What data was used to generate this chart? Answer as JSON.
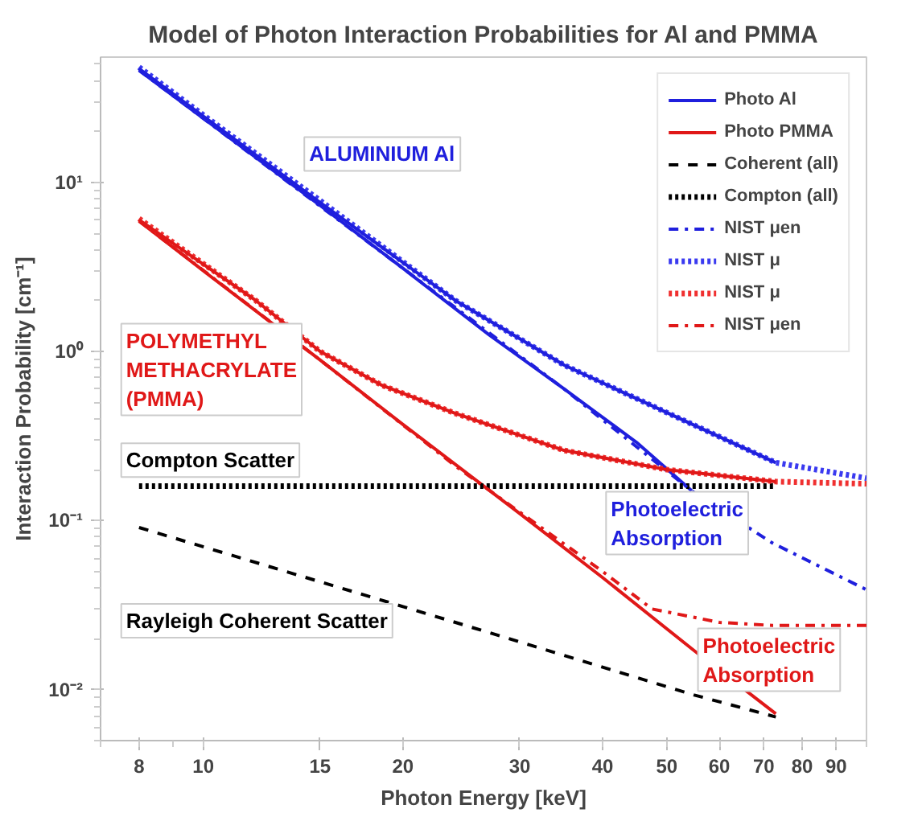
{
  "chart_data": {
    "type": "line",
    "title": "Model of Photon Interaction Probabilities for Al and PMMA",
    "xlabel": "Photon Energy [keV]",
    "ylabel": "Interaction Probability [cm⁻¹]",
    "log": "xy",
    "xlim": [
      7,
      100
    ],
    "ylim": [
      0.005,
      55
    ],
    "xticks": [
      8,
      10,
      15,
      20,
      30,
      40,
      50,
      60,
      70,
      80,
      90
    ],
    "yticks": [
      {
        "value": 0.01,
        "label": "10⁻²"
      },
      {
        "value": 0.1,
        "label": "10⁻¹"
      },
      {
        "value": 1,
        "label": "10⁰"
      },
      {
        "value": 10,
        "label": "10¹"
      }
    ],
    "grid": false,
    "legend": "top right",
    "marker": "none",
    "annotations": [
      "ALUMINIUM Al",
      "POLYMETHYL\nMETHACRYLATE\n(PMMA)",
      "Compton Scatter",
      "Photoelectric\nAbsorption",
      "Rayleigh Coherent Scatter",
      "Photoelectric\nAbsorption"
    ],
    "series": [
      {
        "name": "Photo Al",
        "color": "#1f1fdd",
        "line_style": "solid",
        "x": [
          8,
          10,
          15,
          20,
          27,
          35,
          45,
          54.5
        ],
        "values": [
          46,
          23.9,
          7.3,
          3.1,
          1.25,
          0.6,
          0.29,
          0.15
        ]
      },
      {
        "name": "Photo PMMA",
        "color": "#e01818",
        "line_style": "solid",
        "x": [
          8,
          10,
          15,
          20,
          30,
          40,
          55,
          73
        ],
        "values": [
          5.9,
          3.0,
          0.89,
          0.37,
          0.11,
          0.046,
          0.017,
          0.0072
        ]
      },
      {
        "name": "Coherent (all)",
        "color": "#000000",
        "line_style": "dashed",
        "x": [
          8,
          20,
          24,
          55,
          73
        ],
        "values": [
          0.091,
          0.031,
          0.025,
          0.0093,
          0.0069
        ]
      },
      {
        "name": "Compton (all)",
        "color": "#000000",
        "line_style": "dotted",
        "x": [
          8,
          73
        ],
        "values": [
          0.16,
          0.16
        ]
      },
      {
        "name": "NIST μen",
        "color": "#1f1fdd",
        "line_style": "dashdot",
        "x": [
          8,
          20,
          35,
          54.5,
          72,
          100
        ],
        "values": [
          46,
          3.1,
          0.6,
          0.15,
          0.074,
          0.039
        ]
      },
      {
        "name": "NIST μ",
        "color": "#3a3af0",
        "line_style": "dotted",
        "x": [
          8,
          10,
          15,
          24,
          35,
          50,
          73,
          100
        ],
        "values": [
          48,
          25,
          7.8,
          2.0,
          0.83,
          0.435,
          0.22,
          0.178
        ]
      },
      {
        "name": "NIST μ",
        "color": "#f03030",
        "line_style": "dotted",
        "x": [
          8,
          12,
          15,
          18.6,
          24,
          35,
          50,
          73,
          100
        ],
        "values": [
          6.1,
          2.0,
          1.0,
          0.63,
          0.43,
          0.26,
          0.2,
          0.17,
          0.165
        ]
      },
      {
        "name": "NIST μen",
        "color": "#e01818",
        "line_style": "dashdot",
        "x": [
          8,
          15,
          24,
          40,
          47.5,
          60,
          72,
          100
        ],
        "values": [
          5.9,
          0.89,
          0.21,
          0.05,
          0.03,
          0.025,
          0.024,
          0.024
        ]
      },
      {
        "color": "#1f1fdd",
        "line_style": "solid",
        "x": [
          8,
          15,
          24,
          35,
          50,
          73
        ],
        "values": [
          47,
          7.6,
          2.0,
          0.83,
          0.435,
          0.22
        ]
      },
      {
        "color": "#e01818",
        "line_style": "solid",
        "x": [
          8,
          12,
          15,
          18.6,
          24,
          35,
          50,
          73
        ],
        "values": [
          6.0,
          2.0,
          1.0,
          0.63,
          0.43,
          0.26,
          0.2,
          0.17
        ]
      }
    ]
  }
}
